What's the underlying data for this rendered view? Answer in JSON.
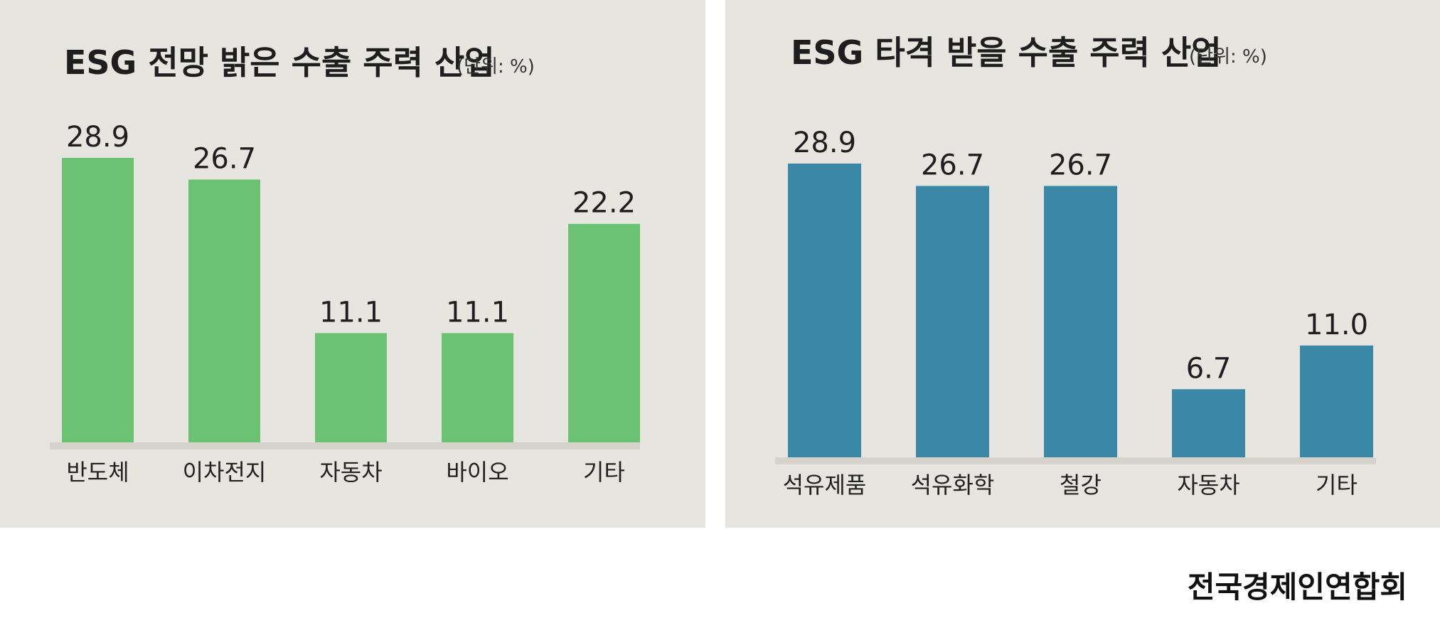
{
  "chart_data": [
    {
      "type": "bar",
      "title": "ESG 전망 밝은 수출 주력 산업",
      "unit": "(단위: %)",
      "categories": [
        "반도체",
        "이차전지",
        "자동차",
        "바이오",
        "기타"
      ],
      "values": [
        28.9,
        26.7,
        11.1,
        11.1,
        22.2
      ],
      "value_labels": [
        "28.9",
        "26.7",
        "11.1",
        "11.1",
        "22.2"
      ],
      "ylim": [
        0,
        28.9
      ],
      "grid": false,
      "legend": "none",
      "color": "#6bc273"
    },
    {
      "type": "bar",
      "title": "ESG 타격 받을 수출 주력 산업",
      "unit": "(단위: %)",
      "categories": [
        "석유제품",
        "석유화학",
        "철강",
        "자동차",
        "기타"
      ],
      "values": [
        28.9,
        26.7,
        26.7,
        6.7,
        11.0
      ],
      "value_labels": [
        "28.9",
        "26.7",
        "26.7",
        "6.7",
        "11.0"
      ],
      "ylim": [
        0,
        28.9
      ],
      "grid": false,
      "legend": "none",
      "color": "#3a87a8"
    }
  ],
  "source": "전국경제인연합회"
}
